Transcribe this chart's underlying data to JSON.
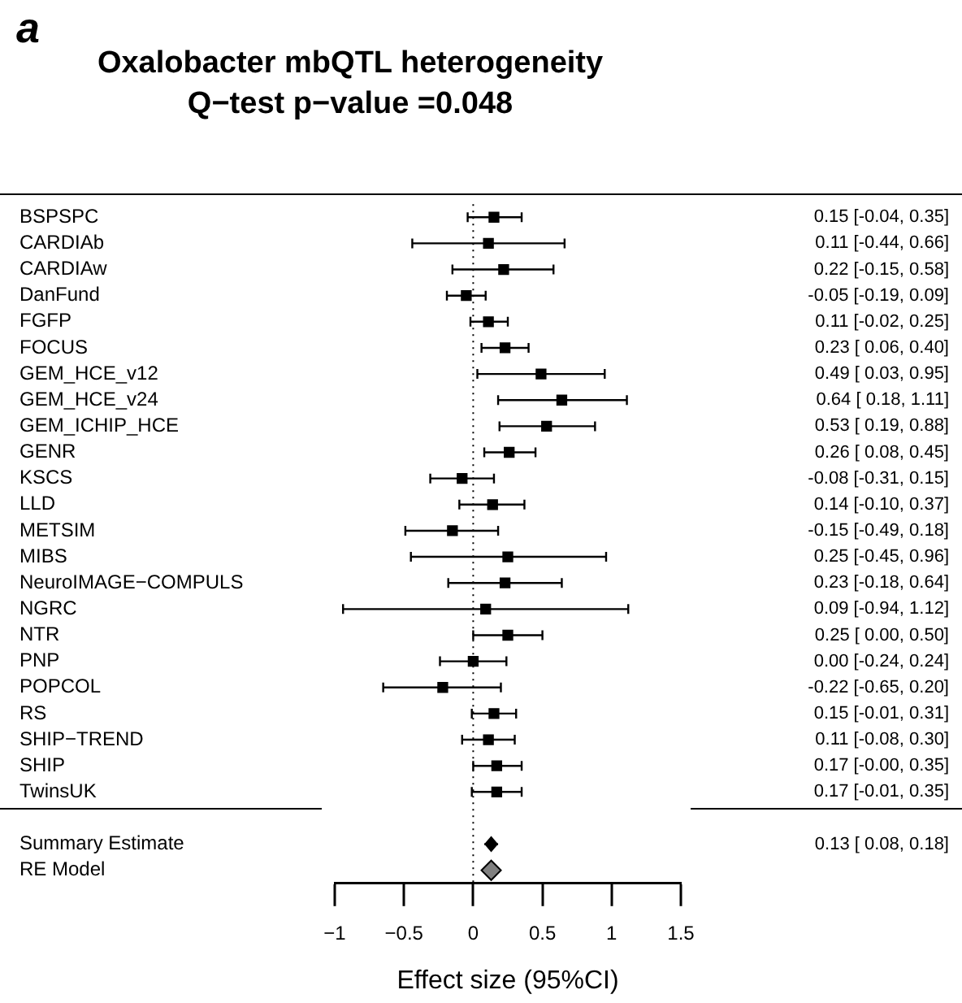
{
  "chart_data": {
    "type": "scatter",
    "orientation": "horizontal",
    "title": "Oxalobacter mbQTL heterogeneity",
    "subtitle": "Q−test p−value =0.048",
    "xlabel": "Effect size (95%CI)",
    "annotations": [
      "a",
      "0.13 [ 0.08, 0.18]"
    ],
    "categories": [
      "BSPSPC",
      "CARDIAb",
      "CARDIAw",
      "DanFund",
      "FGFP",
      "FOCUS",
      "GEM_HCE_v12",
      "GEM_HCE_v24",
      "GEM_ICHIP_HCE",
      "GENR",
      "KSCS",
      "LLD",
      "METSIM",
      "MIBS",
      "NeuroIMAGE−COMPULS",
      "NGRC",
      "NTR",
      "PNP",
      "POPCOL",
      "RS",
      "SHIP−TREND",
      "SHIP",
      "TwinsUK",
      null,
      "Summary Estimate",
      "RE Model"
    ],
    "series": [
      {
        "marker": "square",
        "color": "#000000",
        "values": [
          0.15,
          0.11,
          0.22,
          -0.05,
          0.11,
          0.23,
          0.49,
          0.64,
          0.53,
          0.26,
          -0.08,
          0.14,
          -0.15,
          0.25,
          0.23,
          0.09,
          0.25,
          0.0,
          -0.22,
          0.15,
          0.11,
          0.17,
          0.17,
          null,
          null,
          null
        ],
        "errors": [
          [
            -0.04,
            0.35
          ],
          [
            -0.44,
            0.66
          ],
          [
            -0.15,
            0.58
          ],
          [
            -0.19,
            0.09
          ],
          [
            -0.02,
            0.25
          ],
          [
            0.06,
            0.4
          ],
          [
            0.03,
            0.95
          ],
          [
            0.18,
            1.11
          ],
          [
            0.19,
            0.88
          ],
          [
            0.08,
            0.45
          ],
          [
            -0.31,
            0.15
          ],
          [
            -0.1,
            0.37
          ],
          [
            -0.49,
            0.18
          ],
          [
            -0.45,
            0.96
          ],
          [
            -0.18,
            0.64
          ],
          [
            -0.94,
            1.12
          ],
          [
            0.0,
            0.5
          ],
          [
            -0.24,
            0.24
          ],
          [
            -0.65,
            0.2
          ],
          [
            -0.01,
            0.31
          ],
          [
            -0.08,
            0.3
          ],
          [
            -0.0,
            0.35
          ],
          [
            -0.01,
            0.35
          ],
          null,
          null,
          null
        ],
        "value_labels": [
          "0.15 [-0.04, 0.35]",
          "0.11 [-0.44, 0.66]",
          "0.22 [-0.15, 0.58]",
          "-0.05 [-0.19, 0.09]",
          "0.11 [-0.02, 0.25]",
          "0.23 [ 0.06, 0.40]",
          "0.49 [ 0.03, 0.95]",
          "0.64 [ 0.18, 1.11]",
          "0.53 [ 0.19, 0.88]",
          "0.26 [ 0.08, 0.45]",
          "-0.08 [-0.31, 0.15]",
          "0.14 [-0.10, 0.37]",
          "-0.15 [-0.49, 0.18]",
          "0.25 [-0.45, 0.96]",
          "0.23 [-0.18, 0.64]",
          "0.09 [-0.94, 1.12]",
          "0.25 [ 0.00, 0.50]",
          "0.00 [-0.24, 0.24]",
          "-0.22 [-0.65, 0.20]",
          "0.15 [-0.01, 0.31]",
          "0.11 [-0.08, 0.30]",
          "0.17 [-0.00, 0.35]",
          "0.17 [-0.01, 0.35]",
          null,
          null,
          null
        ]
      },
      {
        "marker": "diamond",
        "color": "#000000",
        "values": [
          null,
          null,
          null,
          null,
          null,
          null,
          null,
          null,
          null,
          null,
          null,
          null,
          null,
          null,
          null,
          null,
          null,
          null,
          null,
          null,
          null,
          null,
          null,
          null,
          0.13,
          null
        ],
        "errors": [
          null,
          null,
          null,
          null,
          null,
          null,
          null,
          null,
          null,
          null,
          null,
          null,
          null,
          null,
          null,
          null,
          null,
          null,
          null,
          null,
          null,
          null,
          null,
          null,
          [
            0.08,
            0.18
          ],
          null
        ]
      },
      {
        "marker": "diamond",
        "color": "#808080",
        "values": [
          null,
          null,
          null,
          null,
          null,
          null,
          null,
          null,
          null,
          null,
          null,
          null,
          null,
          null,
          null,
          null,
          null,
          null,
          null,
          null,
          null,
          null,
          null,
          null,
          null,
          0.13
        ]
      }
    ],
    "xlim": [
      -1,
      1.5
    ],
    "xticks": [
      {
        "value": -1,
        "label": "−1"
      },
      {
        "value": -0.5,
        "label": "−0.5"
      },
      0,
      0.5,
      1,
      1.5
    ],
    "ref_lines": [
      {
        "axis": "x",
        "value": 0,
        "line_style": "dotted"
      }
    ],
    "grid": false,
    "legend": false
  }
}
